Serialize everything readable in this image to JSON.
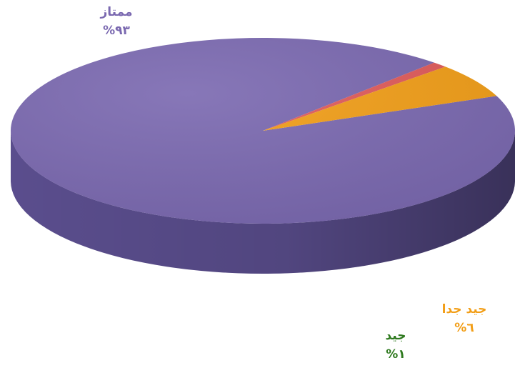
{
  "chart_data": {
    "type": "pie",
    "style": "3d-tilted",
    "title": "",
    "slices": [
      {
        "key": "excellent",
        "label": "ممتاز",
        "value": 93,
        "value_text": "%٩٣",
        "color": "#7a68b0",
        "side_color": "#5c4f90",
        "label_color": "#7a68b0"
      },
      {
        "key": "good",
        "label": "جيد",
        "value": 1,
        "value_text": "%١",
        "color": "#e05a5a",
        "side_color": "#8e2a2a",
        "label_color": "#2f7a1f"
      },
      {
        "key": "very_good",
        "label": "جيد جدا",
        "value": 6,
        "value_text": "%٦",
        "color": "#f29e17",
        "side_color": "#d8860d",
        "label_color": "#f29e17"
      }
    ]
  }
}
